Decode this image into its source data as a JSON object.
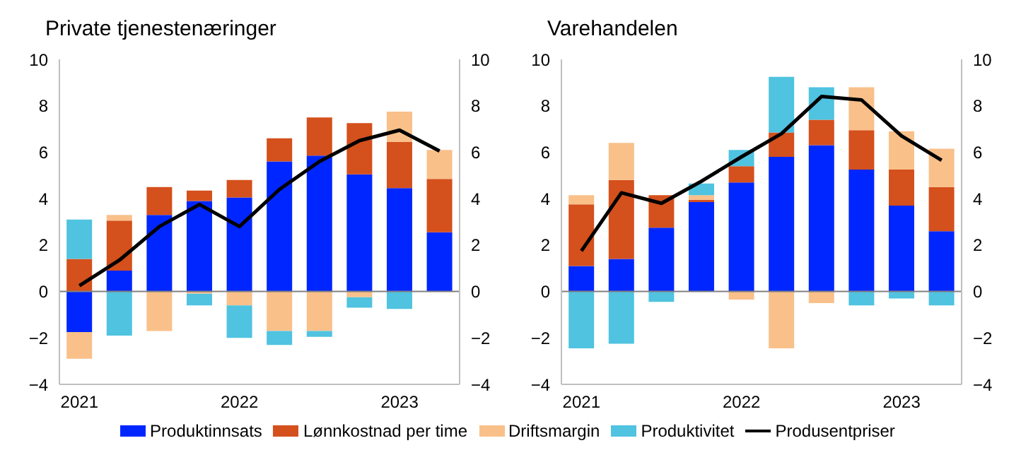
{
  "chart_data": [
    {
      "type": "bar",
      "title": "Private tjenestenæringer",
      "stacked": true,
      "legend": "bottom",
      "categories": [
        "2021",
        null,
        null,
        null,
        "2022",
        null,
        null,
        null,
        "2023",
        null
      ],
      "ylim": [
        -4,
        10
      ],
      "yticks": [
        -4,
        -2,
        0,
        2,
        4,
        6,
        8,
        10
      ],
      "y2lim": [
        -4,
        10
      ],
      "y2ticks": [
        -4,
        -2,
        0,
        2,
        4,
        6,
        8,
        10
      ],
      "ref_lines": [
        {
          "axis": "y",
          "value": 0,
          "color": "#808080"
        }
      ],
      "series": [
        {
          "name": "Produktinnsats",
          "color": "#0026ff",
          "values": [
            -1.75,
            0.9,
            3.3,
            3.9,
            4.05,
            5.6,
            5.85,
            5.05,
            4.45,
            2.55
          ]
        },
        {
          "name": "Lønnkostnad per time",
          "color": "#d4501c",
          "values": [
            1.4,
            2.15,
            1.2,
            0.45,
            0.75,
            1.0,
            1.65,
            2.2,
            2.0,
            2.3
          ]
        },
        {
          "name": "Driftsmargin",
          "color": "#f9c08a",
          "values": [
            -1.15,
            0.25,
            -1.7,
            -0.1,
            -0.6,
            -1.7,
            -1.7,
            -0.25,
            1.3,
            1.25
          ]
        },
        {
          "name": "Produktivitet",
          "color": "#4fc3e0",
          "values": [
            1.7,
            -1.9,
            0,
            -0.5,
            -1.4,
            -0.6,
            -0.25,
            -0.45,
            -0.75,
            0
          ]
        },
        {
          "name": "Produsentpriser",
          "type": "line",
          "color": "#000000",
          "marker": "none",
          "values": [
            0.25,
            1.35,
            2.8,
            3.75,
            2.8,
            4.4,
            5.6,
            6.5,
            6.95,
            6.05
          ]
        }
      ]
    },
    {
      "type": "bar",
      "title": "Varehandelen",
      "stacked": true,
      "categories": [
        "2021",
        null,
        null,
        null,
        "2022",
        null,
        null,
        null,
        "2023",
        null
      ],
      "ylim": [
        -4,
        10
      ],
      "yticks": [
        -4,
        -2,
        0,
        2,
        4,
        6,
        8,
        10
      ],
      "y2lim": [
        -4,
        10
      ],
      "y2ticks": [
        -4,
        -2,
        0,
        2,
        4,
        6,
        8,
        10
      ],
      "ref_lines": [
        {
          "axis": "y",
          "value": 0,
          "color": "#808080"
        }
      ],
      "series": [
        {
          "color": "#0026ff",
          "values": [
            1.1,
            1.4,
            2.75,
            3.85,
            4.7,
            5.8,
            6.3,
            5.25,
            3.7,
            2.6
          ]
        },
        {
          "color": "#d4501c",
          "values": [
            2.65,
            3.4,
            1.4,
            0.1,
            0.7,
            1.05,
            1.1,
            1.7,
            1.55,
            1.9
          ]
        },
        {
          "color": "#f9c08a",
          "values": [
            0.4,
            1.6,
            0,
            0.2,
            -0.35,
            -2.45,
            -0.5,
            1.85,
            1.65,
            1.65
          ]
        },
        {
          "color": "#4fc3e0",
          "values": [
            -2.45,
            -2.25,
            -0.45,
            0.5,
            0.7,
            2.4,
            1.4,
            -0.6,
            -0.3,
            -0.6
          ]
        },
        {
          "type": "line",
          "color": "#000000",
          "marker": "none",
          "values": [
            1.75,
            4.25,
            3.8,
            4.75,
            5.8,
            6.8,
            8.4,
            8.25,
            6.7,
            5.65
          ]
        }
      ]
    }
  ]
}
